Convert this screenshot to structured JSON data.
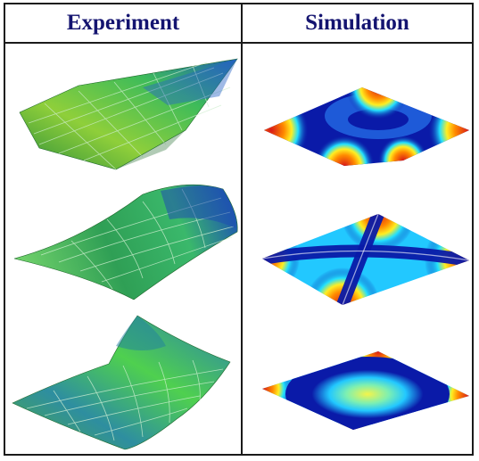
{
  "table": {
    "col_experiment": "Experiment",
    "col_simulation": "Simulation"
  },
  "colors": {
    "border": "#1a1a1a",
    "header_text": "#141470",
    "experiment_surface": "#3fb24a",
    "simulation_hot": "#e8201a",
    "simulation_cold": "#0a1aa8"
  },
  "rows": [
    {
      "experiment": "experimental-surface-mode-1",
      "simulation": "simulated-surface-mode-1"
    },
    {
      "experiment": "experimental-surface-mode-2",
      "simulation": "simulated-surface-mode-2"
    },
    {
      "experiment": "experimental-surface-mode-3",
      "simulation": "simulated-surface-mode-3"
    }
  ]
}
